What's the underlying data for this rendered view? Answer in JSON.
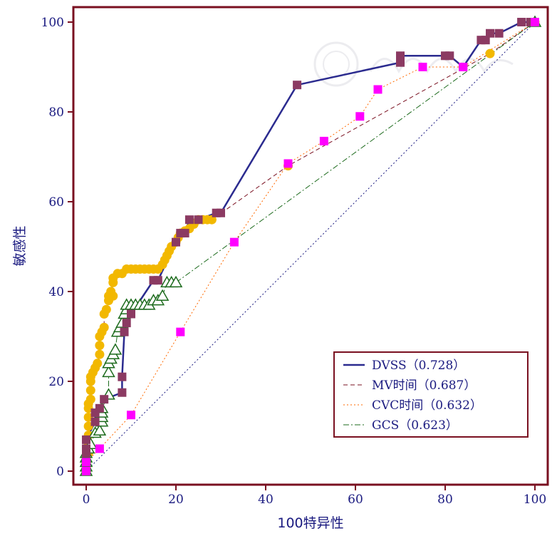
{
  "chart_data": {
    "type": "line",
    "xlabel": "100特异性",
    "ylabel": "敏感性",
    "xlim": [
      0,
      100
    ],
    "ylim": [
      0,
      100
    ],
    "xticks": [
      0,
      20,
      40,
      60,
      80,
      100
    ],
    "yticks": [
      0,
      20,
      40,
      60,
      80,
      100
    ],
    "grid": false,
    "legend_position": "bottom-right",
    "colors": {
      "frame": "#7a1020",
      "axis": "#7a1020",
      "text": "#1a1a80",
      "dvss": "#2b2b8f",
      "dvss_marker": "#8b3a62",
      "mv": "#7a1020",
      "mv_marker": "#f2b800",
      "cvc": "#ff6a00",
      "cvc_marker": "#ff00ff",
      "gcs": "#1d6b1d",
      "gcs_marker": "#1d6b1d",
      "diagonal": "#1a1a80"
    },
    "legend": [
      {
        "key": "dvss",
        "label": "DVSS（0.728）"
      },
      {
        "key": "mv",
        "label": "MV时间（0.687）"
      },
      {
        "key": "cvc",
        "label": "CVC时间（0.632）"
      },
      {
        "key": "gcs",
        "label": "GCS（0.623）"
      }
    ],
    "series": [
      {
        "key": "dvss",
        "marker": "square",
        "line": "solid",
        "points": [
          [
            0,
            0
          ],
          [
            0,
            2
          ],
          [
            0,
            4
          ],
          [
            0,
            5
          ],
          [
            0,
            7
          ],
          [
            2,
            11
          ],
          [
            2,
            13
          ],
          [
            3,
            14
          ],
          [
            4,
            16
          ],
          [
            8,
            17.5
          ],
          [
            8,
            21
          ],
          [
            8.5,
            31
          ],
          [
            9,
            33
          ],
          [
            10,
            35
          ],
          [
            15,
            42.5
          ],
          [
            16,
            42.5
          ],
          [
            20,
            51
          ],
          [
            21,
            53
          ],
          [
            22,
            53
          ],
          [
            23,
            56
          ],
          [
            25,
            56
          ],
          [
            29,
            57.5
          ],
          [
            30,
            57.5
          ],
          [
            47,
            86
          ],
          [
            70,
            91
          ],
          [
            70,
            92.5
          ],
          [
            80,
            92.5
          ],
          [
            81,
            92.5
          ],
          [
            84,
            90
          ],
          [
            88,
            96
          ],
          [
            89,
            96
          ],
          [
            90,
            97.5
          ],
          [
            92,
            97.5
          ],
          [
            97,
            100
          ],
          [
            99,
            100
          ],
          [
            100,
            100
          ]
        ]
      },
      {
        "key": "mv",
        "marker": "circle",
        "line": "dashed",
        "points": [
          [
            0,
            0
          ],
          [
            0,
            1
          ],
          [
            0,
            2
          ],
          [
            0,
            3
          ],
          [
            0.5,
            4
          ],
          [
            0.5,
            6
          ],
          [
            0.5,
            8
          ],
          [
            0.5,
            10
          ],
          [
            0.5,
            12
          ],
          [
            0.5,
            14
          ],
          [
            0.5,
            15
          ],
          [
            1,
            16
          ],
          [
            1,
            18
          ],
          [
            1,
            20
          ],
          [
            1,
            21
          ],
          [
            1.5,
            22
          ],
          [
            2,
            23
          ],
          [
            2.5,
            24
          ],
          [
            3,
            26
          ],
          [
            3,
            28
          ],
          [
            3,
            30
          ],
          [
            3.5,
            31
          ],
          [
            4,
            32
          ],
          [
            4,
            35
          ],
          [
            4.5,
            36
          ],
          [
            5,
            38
          ],
          [
            5,
            39
          ],
          [
            6,
            39
          ],
          [
            5.5,
            40
          ],
          [
            6,
            42
          ],
          [
            6,
            43
          ],
          [
            7,
            44
          ],
          [
            8,
            44
          ],
          [
            9,
            45
          ],
          [
            10,
            45
          ],
          [
            11,
            45
          ],
          [
            12,
            45
          ],
          [
            13,
            45
          ],
          [
            14,
            45
          ],
          [
            15,
            45
          ],
          [
            16,
            45
          ],
          [
            17,
            46
          ],
          [
            17.5,
            47
          ],
          [
            18,
            48
          ],
          [
            18.5,
            49
          ],
          [
            19,
            50
          ],
          [
            20,
            51
          ],
          [
            20.5,
            52
          ],
          [
            21,
            53
          ],
          [
            22,
            53.5
          ],
          [
            23,
            54
          ],
          [
            24,
            55
          ],
          [
            25,
            56
          ],
          [
            26,
            56
          ],
          [
            27,
            56
          ],
          [
            28,
            56
          ],
          [
            45,
            68
          ],
          [
            90,
            93
          ],
          [
            100,
            100
          ]
        ]
      },
      {
        "key": "cvc",
        "marker": "square",
        "line": "dotted",
        "points": [
          [
            0,
            0
          ],
          [
            0,
            2
          ],
          [
            3,
            5
          ],
          [
            10,
            12.5
          ],
          [
            21,
            31
          ],
          [
            33,
            51
          ],
          [
            45,
            68.5
          ],
          [
            53,
            73.5
          ],
          [
            61,
            79
          ],
          [
            65,
            85
          ],
          [
            75,
            90
          ],
          [
            84,
            90
          ],
          [
            100,
            100
          ]
        ]
      },
      {
        "key": "gcs",
        "marker": "triangle",
        "line": "dashdot",
        "points": [
          [
            0,
            0
          ],
          [
            0,
            1
          ],
          [
            0,
            2
          ],
          [
            0,
            3
          ],
          [
            0,
            4
          ],
          [
            0.5,
            5
          ],
          [
            1,
            6
          ],
          [
            2,
            8.5
          ],
          [
            3,
            9
          ],
          [
            3.5,
            11
          ],
          [
            3.5,
            12
          ],
          [
            3.5,
            13
          ],
          [
            3.5,
            14
          ],
          [
            5,
            17
          ],
          [
            5,
            22
          ],
          [
            5,
            24
          ],
          [
            5.5,
            25
          ],
          [
            6,
            26
          ],
          [
            6.5,
            27
          ],
          [
            7,
            31
          ],
          [
            7.5,
            32
          ],
          [
            8,
            33
          ],
          [
            8.5,
            35
          ],
          [
            9,
            36
          ],
          [
            9,
            37
          ],
          [
            10,
            37
          ],
          [
            11,
            37
          ],
          [
            12,
            37
          ],
          [
            13,
            37
          ],
          [
            14,
            37
          ],
          [
            15,
            38
          ],
          [
            16,
            38
          ],
          [
            17,
            39
          ],
          [
            18,
            42
          ],
          [
            19,
            42
          ],
          [
            20,
            42
          ],
          [
            100,
            100
          ]
        ]
      },
      {
        "key": "diagonal",
        "marker": "none",
        "line": "dotted",
        "points": [
          [
            0,
            0
          ],
          [
            100,
            100
          ]
        ]
      }
    ]
  }
}
